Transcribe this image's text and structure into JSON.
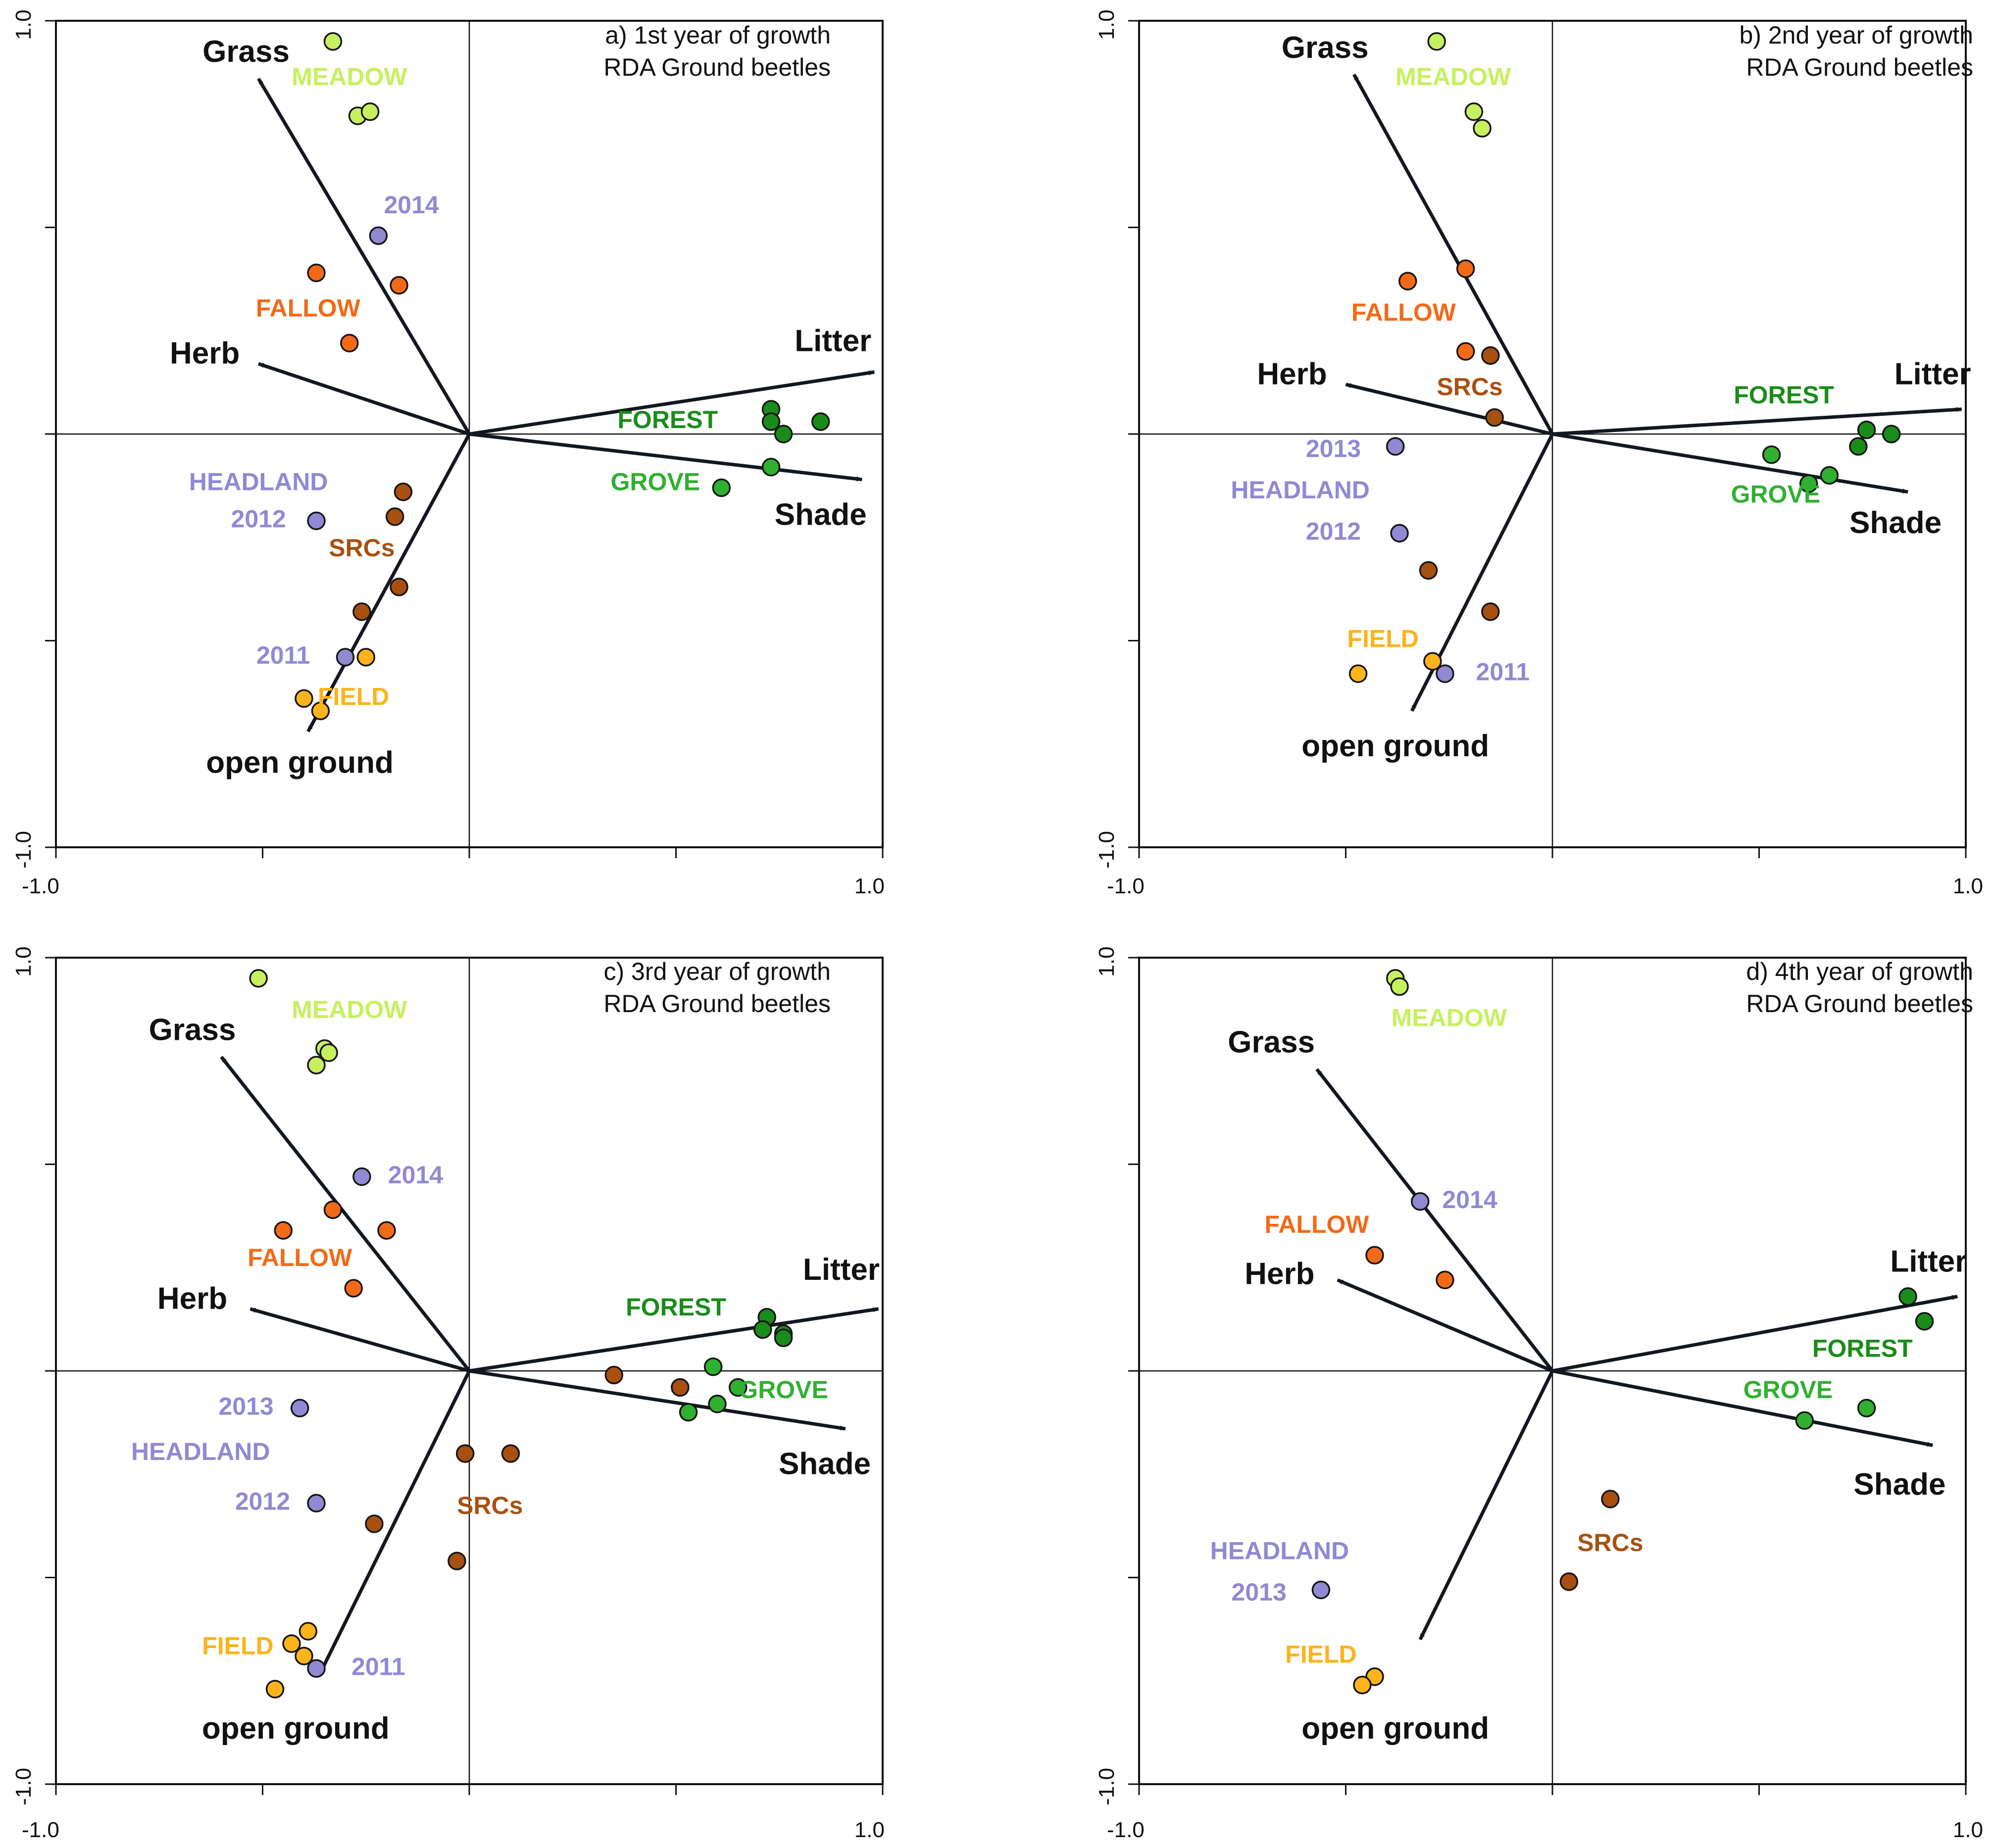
{
  "colors": {
    "MEADOW": "#c6f060",
    "FALLOW": "#f26a18",
    "HEADLAND": "#9189d3",
    "SRCs": "#a8500f",
    "FIELD": "#fcb41a",
    "FOREST": "#1a8c1a",
    "GROVE": "#30b030",
    "arrow": "#131820",
    "frame": "#111111"
  },
  "chart_data": [
    {
      "type": "scatter",
      "title": "a) 1st year of growth",
      "subtitle": "RDA Ground beetles",
      "xlim": [
        -1.0,
        1.0
      ],
      "ylim": [
        -1.0,
        1.0
      ],
      "x_tick_labels": [
        "-1.0",
        "1.0"
      ],
      "y_tick_labels": [
        "1.0",
        "-1.0"
      ],
      "arrows": [
        {
          "name": "Grass",
          "x": -0.51,
          "y": 0.86,
          "label_x": -0.54,
          "label_y": 0.92
        },
        {
          "name": "Herb",
          "x": -0.51,
          "y": 0.17,
          "label_x": -0.64,
          "label_y": 0.19
        },
        {
          "name": "Litter",
          "x": 0.98,
          "y": 0.15,
          "label_x": 0.88,
          "label_y": 0.22
        },
        {
          "name": "Shade",
          "x": 0.95,
          "y": -0.11,
          "label_x": 0.85,
          "label_y": -0.2
        },
        {
          "name": "open ground",
          "x": -0.39,
          "y": -0.72,
          "label_x": -0.41,
          "label_y": -0.8
        }
      ],
      "points": [
        {
          "group": "MEADOW",
          "x": -0.33,
          "y": 0.95
        },
        {
          "group": "MEADOW",
          "x": -0.27,
          "y": 0.77
        },
        {
          "group": "MEADOW",
          "x": -0.24,
          "y": 0.78
        },
        {
          "group": "HEADLAND",
          "x": -0.22,
          "y": 0.48
        },
        {
          "group": "FALLOW",
          "x": -0.37,
          "y": 0.39
        },
        {
          "group": "FALLOW",
          "x": -0.17,
          "y": 0.36
        },
        {
          "group": "FALLOW",
          "x": -0.29,
          "y": 0.22
        },
        {
          "group": "FOREST",
          "x": 0.73,
          "y": 0.06
        },
        {
          "group": "FOREST",
          "x": 0.73,
          "y": 0.03
        },
        {
          "group": "FOREST",
          "x": 0.76,
          "y": 0.0
        },
        {
          "group": "FOREST",
          "x": 0.85,
          "y": 0.03
        },
        {
          "group": "GROVE",
          "x": 0.73,
          "y": -0.08
        },
        {
          "group": "GROVE",
          "x": 0.61,
          "y": -0.13
        },
        {
          "group": "HEADLAND",
          "x": -0.37,
          "y": -0.21
        },
        {
          "group": "SRCs",
          "x": -0.16,
          "y": -0.14
        },
        {
          "group": "SRCs",
          "x": -0.18,
          "y": -0.2
        },
        {
          "group": "SRCs",
          "x": -0.17,
          "y": -0.37
        },
        {
          "group": "SRCs",
          "x": -0.26,
          "y": -0.43
        },
        {
          "group": "HEADLAND",
          "x": -0.3,
          "y": -0.54
        },
        {
          "group": "FIELD",
          "x": -0.25,
          "y": -0.54
        },
        {
          "group": "FIELD",
          "x": -0.4,
          "y": -0.64
        },
        {
          "group": "FIELD",
          "x": -0.36,
          "y": -0.67
        }
      ],
      "labels": [
        {
          "text": "MEADOW",
          "group": "MEADOW",
          "x": -0.29,
          "y": 0.86
        },
        {
          "text": "2014",
          "group": "HEADLAND",
          "x": -0.14,
          "y": 0.55
        },
        {
          "text": "FALLOW",
          "group": "FALLOW",
          "x": -0.39,
          "y": 0.3
        },
        {
          "text": "FOREST",
          "group": "FOREST",
          "x": 0.48,
          "y": 0.03
        },
        {
          "text": "GROVE",
          "group": "GROVE",
          "x": 0.45,
          "y": -0.12
        },
        {
          "text": "HEADLAND",
          "group": "HEADLAND",
          "x": -0.51,
          "y": -0.12
        },
        {
          "text": "2012",
          "group": "HEADLAND",
          "x": -0.51,
          "y": -0.21
        },
        {
          "text": "SRCs",
          "group": "SRCs",
          "x": -0.26,
          "y": -0.28
        },
        {
          "text": "2011",
          "group": "HEADLAND",
          "x": -0.45,
          "y": -0.54
        },
        {
          "text": "FIELD",
          "group": "FIELD",
          "x": -0.28,
          "y": -0.64
        }
      ]
    },
    {
      "type": "scatter",
      "title": "b) 2nd year of growth",
      "subtitle": "RDA Ground beetles",
      "xlim": [
        -1.0,
        1.0
      ],
      "ylim": [
        -1.0,
        1.0
      ],
      "x_tick_labels": [
        "-1.0",
        "1.0"
      ],
      "y_tick_labels": [
        "1.0",
        "-1.0"
      ],
      "arrows": [
        {
          "name": "Grass",
          "x": -0.48,
          "y": 0.87,
          "label_x": -0.55,
          "label_y": 0.93
        },
        {
          "name": "Herb",
          "x": -0.5,
          "y": 0.12,
          "label_x": -0.63,
          "label_y": 0.14
        },
        {
          "name": "Litter",
          "x": 0.99,
          "y": 0.06,
          "label_x": 0.92,
          "label_y": 0.14
        },
        {
          "name": "Shade",
          "x": 0.86,
          "y": -0.14,
          "label_x": 0.83,
          "label_y": -0.22
        },
        {
          "name": "open ground",
          "x": -0.34,
          "y": -0.67,
          "label_x": -0.38,
          "label_y": -0.76
        }
      ],
      "points": [
        {
          "group": "MEADOW",
          "x": -0.28,
          "y": 0.95
        },
        {
          "group": "MEADOW",
          "x": -0.19,
          "y": 0.78
        },
        {
          "group": "MEADOW",
          "x": -0.17,
          "y": 0.74
        },
        {
          "group": "FALLOW",
          "x": -0.35,
          "y": 0.37
        },
        {
          "group": "FALLOW",
          "x": -0.21,
          "y": 0.4
        },
        {
          "group": "FALLOW",
          "x": -0.21,
          "y": 0.2
        },
        {
          "group": "SRCs",
          "x": -0.15,
          "y": 0.19
        },
        {
          "group": "SRCs",
          "x": -0.14,
          "y": 0.04
        },
        {
          "group": "HEADLAND",
          "x": -0.38,
          "y": -0.03
        },
        {
          "group": "FOREST",
          "x": 0.76,
          "y": 0.01
        },
        {
          "group": "FOREST",
          "x": 0.82,
          "y": 0.0
        },
        {
          "group": "FOREST",
          "x": 0.74,
          "y": -0.03
        },
        {
          "group": "GROVE",
          "x": 0.53,
          "y": -0.05
        },
        {
          "group": "GROVE",
          "x": 0.62,
          "y": -0.12
        },
        {
          "group": "GROVE",
          "x": 0.67,
          "y": -0.1
        },
        {
          "group": "HEADLAND",
          "x": -0.37,
          "y": -0.24
        },
        {
          "group": "SRCs",
          "x": -0.3,
          "y": -0.33
        },
        {
          "group": "SRCs",
          "x": -0.15,
          "y": -0.43
        },
        {
          "group": "FIELD",
          "x": -0.29,
          "y": -0.55
        },
        {
          "group": "HEADLAND",
          "x": -0.26,
          "y": -0.58
        },
        {
          "group": "FIELD",
          "x": -0.47,
          "y": -0.58
        }
      ],
      "labels": [
        {
          "text": "MEADOW",
          "group": "MEADOW",
          "x": -0.24,
          "y": 0.86
        },
        {
          "text": "FALLOW",
          "group": "FALLOW",
          "x": -0.36,
          "y": 0.29
        },
        {
          "text": "SRCs",
          "group": "SRCs",
          "x": -0.2,
          "y": 0.11
        },
        {
          "text": "FOREST",
          "group": "FOREST",
          "x": 0.56,
          "y": 0.09
        },
        {
          "text": "2013",
          "group": "HEADLAND",
          "x": -0.53,
          "y": -0.04
        },
        {
          "text": "HEADLAND",
          "group": "HEADLAND",
          "x": -0.61,
          "y": -0.14
        },
        {
          "text": "2012",
          "group": "HEADLAND",
          "x": -0.53,
          "y": -0.24
        },
        {
          "text": "GROVE",
          "group": "GROVE",
          "x": 0.54,
          "y": -0.15
        },
        {
          "text": "FIELD",
          "group": "FIELD",
          "x": -0.41,
          "y": -0.5
        },
        {
          "text": "2011",
          "group": "HEADLAND",
          "x": -0.12,
          "y": -0.58
        }
      ]
    },
    {
      "type": "scatter",
      "title": "c) 3rd year of growth",
      "subtitle": "RDA Ground beetles",
      "xlim": [
        -1.0,
        1.0
      ],
      "ylim": [
        -1.0,
        1.0
      ],
      "x_tick_labels": [
        "-1.0",
        "1.0"
      ],
      "y_tick_labels": [
        "1.0",
        "-1.0"
      ],
      "arrows": [
        {
          "name": "Grass",
          "x": -0.6,
          "y": 0.76,
          "label_x": -0.67,
          "label_y": 0.82
        },
        {
          "name": "Herb",
          "x": -0.53,
          "y": 0.15,
          "label_x": -0.67,
          "label_y": 0.17
        },
        {
          "name": "Litter",
          "x": 0.99,
          "y": 0.15,
          "label_x": 0.9,
          "label_y": 0.24
        },
        {
          "name": "Shade",
          "x": 0.91,
          "y": -0.14,
          "label_x": 0.86,
          "label_y": -0.23
        },
        {
          "name": "open ground",
          "x": -0.36,
          "y": -0.73,
          "label_x": -0.42,
          "label_y": -0.87
        }
      ],
      "points": [
        {
          "group": "MEADOW",
          "x": -0.51,
          "y": 0.95
        },
        {
          "group": "MEADOW",
          "x": -0.35,
          "y": 0.78
        },
        {
          "group": "MEADOW",
          "x": -0.34,
          "y": 0.77
        },
        {
          "group": "MEADOW",
          "x": -0.37,
          "y": 0.74
        },
        {
          "group": "HEADLAND",
          "x": -0.26,
          "y": 0.47
        },
        {
          "group": "FALLOW",
          "x": -0.33,
          "y": 0.39
        },
        {
          "group": "FALLOW",
          "x": -0.45,
          "y": 0.34
        },
        {
          "group": "FALLOW",
          "x": -0.2,
          "y": 0.34
        },
        {
          "group": "FALLOW",
          "x": -0.28,
          "y": 0.2
        },
        {
          "group": "FOREST",
          "x": 0.72,
          "y": 0.13
        },
        {
          "group": "FOREST",
          "x": 0.71,
          "y": 0.1
        },
        {
          "group": "FOREST",
          "x": 0.76,
          "y": 0.09
        },
        {
          "group": "FOREST",
          "x": 0.76,
          "y": 0.08
        },
        {
          "group": "GROVE",
          "x": 0.59,
          "y": 0.01
        },
        {
          "group": "GROVE",
          "x": 0.65,
          "y": -0.04
        },
        {
          "group": "GROVE",
          "x": 0.6,
          "y": -0.08
        },
        {
          "group": "GROVE",
          "x": 0.53,
          "y": -0.1
        },
        {
          "group": "SRCs",
          "x": 0.35,
          "y": -0.01
        },
        {
          "group": "SRCs",
          "x": 0.51,
          "y": -0.04
        },
        {
          "group": "HEADLAND",
          "x": -0.41,
          "y": -0.09
        },
        {
          "group": "SRCs",
          "x": -0.01,
          "y": -0.2
        },
        {
          "group": "SRCs",
          "x": 0.1,
          "y": -0.2
        },
        {
          "group": "SRCs",
          "x": -0.23,
          "y": -0.37
        },
        {
          "group": "SRCs",
          "x": -0.03,
          "y": -0.46
        },
        {
          "group": "HEADLAND",
          "x": -0.37,
          "y": -0.32
        },
        {
          "group": "FIELD",
          "x": -0.39,
          "y": -0.63
        },
        {
          "group": "FIELD",
          "x": -0.43,
          "y": -0.66
        },
        {
          "group": "FIELD",
          "x": -0.4,
          "y": -0.69
        },
        {
          "group": "HEADLAND",
          "x": -0.37,
          "y": -0.72
        },
        {
          "group": "FIELD",
          "x": -0.47,
          "y": -0.77
        }
      ],
      "labels": [
        {
          "text": "MEADOW",
          "group": "MEADOW",
          "x": -0.29,
          "y": 0.87
        },
        {
          "text": "2014",
          "group": "HEADLAND",
          "x": -0.13,
          "y": 0.47
        },
        {
          "text": "FALLOW",
          "group": "FALLOW",
          "x": -0.41,
          "y": 0.27
        },
        {
          "text": "FOREST",
          "group": "FOREST",
          "x": 0.5,
          "y": 0.15
        },
        {
          "text": "GROVE",
          "group": "GROVE",
          "x": 0.76,
          "y": -0.05
        },
        {
          "text": "2013",
          "group": "HEADLAND",
          "x": -0.54,
          "y": -0.09
        },
        {
          "text": "HEADLAND",
          "group": "HEADLAND",
          "x": -0.65,
          "y": -0.2
        },
        {
          "text": "2012",
          "group": "HEADLAND",
          "x": -0.5,
          "y": -0.32
        },
        {
          "text": "SRCs",
          "group": "SRCs",
          "x": 0.05,
          "y": -0.33
        },
        {
          "text": "FIELD",
          "group": "FIELD",
          "x": -0.56,
          "y": -0.67
        },
        {
          "text": "2011",
          "group": "HEADLAND",
          "x": -0.22,
          "y": -0.72
        }
      ]
    },
    {
      "type": "scatter",
      "title": "d) 4th year of growth",
      "subtitle": "RDA Ground beetles",
      "xlim": [
        -1.0,
        1.0
      ],
      "ylim": [
        -1.0,
        1.0
      ],
      "x_tick_labels": [
        "-1.0",
        "1.0"
      ],
      "y_tick_labels": [
        "1.0",
        "-1.0"
      ],
      "arrows": [
        {
          "name": "Grass",
          "x": -0.57,
          "y": 0.73,
          "label_x": -0.68,
          "label_y": 0.79
        },
        {
          "name": "Herb",
          "x": -0.52,
          "y": 0.22,
          "label_x": -0.66,
          "label_y": 0.23
        },
        {
          "name": "Litter",
          "x": 0.98,
          "y": 0.18,
          "label_x": 0.91,
          "label_y": 0.26
        },
        {
          "name": "Shade",
          "x": 0.92,
          "y": -0.18,
          "label_x": 0.84,
          "label_y": -0.28
        },
        {
          "name": "open ground",
          "x": -0.32,
          "y": -0.65,
          "label_x": -0.38,
          "label_y": -0.87
        }
      ],
      "points": [
        {
          "group": "MEADOW",
          "x": -0.38,
          "y": 0.95
        },
        {
          "group": "MEADOW",
          "x": -0.37,
          "y": 0.93
        },
        {
          "group": "HEADLAND",
          "x": -0.32,
          "y": 0.41
        },
        {
          "group": "FALLOW",
          "x": -0.43,
          "y": 0.28
        },
        {
          "group": "FALLOW",
          "x": -0.26,
          "y": 0.22
        },
        {
          "group": "FOREST",
          "x": 0.86,
          "y": 0.18
        },
        {
          "group": "FOREST",
          "x": 0.9,
          "y": 0.12
        },
        {
          "group": "GROVE",
          "x": 0.76,
          "y": -0.09
        },
        {
          "group": "GROVE",
          "x": 0.61,
          "y": -0.12
        },
        {
          "group": "SRCs",
          "x": 0.14,
          "y": -0.31
        },
        {
          "group": "SRCs",
          "x": 0.04,
          "y": -0.51
        },
        {
          "group": "HEADLAND",
          "x": -0.56,
          "y": -0.53
        },
        {
          "group": "FIELD",
          "x": -0.43,
          "y": -0.74
        },
        {
          "group": "FIELD",
          "x": -0.46,
          "y": -0.76
        }
      ],
      "labels": [
        {
          "text": "MEADOW",
          "group": "MEADOW",
          "x": -0.25,
          "y": 0.85
        },
        {
          "text": "2014",
          "group": "HEADLAND",
          "x": -0.2,
          "y": 0.41
        },
        {
          "text": "FALLOW",
          "group": "FALLOW",
          "x": -0.57,
          "y": 0.35
        },
        {
          "text": "FOREST",
          "group": "FOREST",
          "x": 0.75,
          "y": 0.05
        },
        {
          "text": "GROVE",
          "group": "GROVE",
          "x": 0.57,
          "y": -0.05
        },
        {
          "text": "SRCs",
          "group": "SRCs",
          "x": 0.14,
          "y": -0.42
        },
        {
          "text": "HEADLAND",
          "group": "HEADLAND",
          "x": -0.66,
          "y": -0.44
        },
        {
          "text": "2013",
          "group": "HEADLAND",
          "x": -0.71,
          "y": -0.54
        },
        {
          "text": "FIELD",
          "group": "FIELD",
          "x": -0.56,
          "y": -0.69
        }
      ]
    }
  ]
}
